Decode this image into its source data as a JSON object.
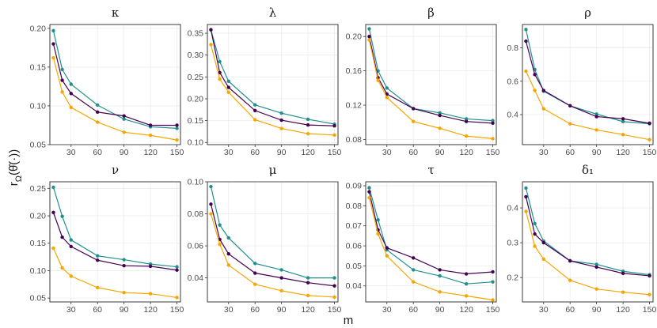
{
  "figure": {
    "xlabel": "m",
    "ylabel": "rΩ(θ̂(·))",
    "colors": {
      "teal": "#21908d",
      "purple": "#440154",
      "orange": "#f7a600"
    }
  },
  "chart_data": [
    {
      "type": "line",
      "title": "κ",
      "x": [
        10,
        20,
        30,
        60,
        90,
        120,
        150
      ],
      "xticks": [
        30,
        60,
        90,
        120,
        150
      ],
      "xlim": [
        6,
        154
      ],
      "ylim": [
        0.05,
        0.205
      ],
      "yticks": [
        0.05,
        0.1,
        0.15,
        0.2
      ],
      "ytick_labels": [
        "0.05",
        "0.10",
        "0.15",
        "0.20"
      ],
      "series": [
        {
          "name": "teal",
          "color": "#21908d",
          "values": [
            0.197,
            0.147,
            0.128,
            0.101,
            0.083,
            0.073,
            0.071
          ]
        },
        {
          "name": "purple",
          "color": "#440154",
          "values": [
            0.18,
            0.133,
            0.116,
            0.092,
            0.087,
            0.075,
            0.075
          ]
        },
        {
          "name": "orange",
          "color": "#f7a600",
          "values": [
            0.162,
            0.118,
            0.098,
            0.079,
            0.066,
            0.062,
            0.056
          ]
        }
      ]
    },
    {
      "type": "line",
      "title": "λ",
      "x": [
        10,
        20,
        30,
        60,
        90,
        120,
        150
      ],
      "xticks": [
        30,
        60,
        90,
        120,
        150
      ],
      "xlim": [
        6,
        154
      ],
      "ylim": [
        0.095,
        0.37
      ],
      "yticks": [
        0.1,
        0.15,
        0.2,
        0.25,
        0.3,
        0.35
      ],
      "ytick_labels": [
        "0.10",
        "0.15",
        "0.20",
        "0.25",
        "0.30",
        "0.35"
      ],
      "series": [
        {
          "name": "teal",
          "color": "#21908d",
          "values": [
            0.358,
            0.285,
            0.24,
            0.186,
            0.167,
            0.153,
            0.142
          ]
        },
        {
          "name": "purple",
          "color": "#440154",
          "values": [
            0.358,
            0.26,
            0.226,
            0.173,
            0.151,
            0.14,
            0.138
          ]
        },
        {
          "name": "orange",
          "color": "#f7a600",
          "values": [
            0.324,
            0.245,
            0.215,
            0.152,
            0.132,
            0.12,
            0.117
          ]
        }
      ]
    },
    {
      "type": "line",
      "title": "β",
      "x": [
        10,
        20,
        30,
        60,
        90,
        120,
        150
      ],
      "xticks": [
        30,
        60,
        90,
        120,
        150
      ],
      "xlim": [
        6,
        154
      ],
      "ylim": [
        0.074,
        0.214
      ],
      "yticks": [
        0.08,
        0.12,
        0.16,
        0.2
      ],
      "ytick_labels": [
        "0.08",
        "0.12",
        "0.16",
        "0.20"
      ],
      "series": [
        {
          "name": "teal",
          "color": "#21908d",
          "values": [
            0.209,
            0.16,
            0.14,
            0.116,
            0.111,
            0.104,
            0.102
          ]
        },
        {
          "name": "purple",
          "color": "#440154",
          "values": [
            0.2,
            0.152,
            0.133,
            0.116,
            0.108,
            0.101,
            0.099
          ]
        },
        {
          "name": "orange",
          "color": "#f7a600",
          "values": [
            0.196,
            0.149,
            0.129,
            0.101,
            0.093,
            0.084,
            0.081
          ]
        }
      ]
    },
    {
      "type": "line",
      "title": "ρ",
      "x": [
        10,
        20,
        30,
        60,
        90,
        120,
        150
      ],
      "xticks": [
        30,
        60,
        90,
        120,
        150
      ],
      "xlim": [
        6,
        154
      ],
      "ylim": [
        0.22,
        0.94
      ],
      "yticks": [
        0.4,
        0.6,
        0.8
      ],
      "ytick_labels": [
        "0.4",
        "0.6",
        "0.8"
      ],
      "series": [
        {
          "name": "teal",
          "color": "#21908d",
          "values": [
            0.91,
            0.67,
            0.54,
            0.453,
            0.403,
            0.358,
            0.345
          ]
        },
        {
          "name": "purple",
          "color": "#440154",
          "values": [
            0.84,
            0.64,
            0.545,
            0.453,
            0.388,
            0.375,
            0.348
          ]
        },
        {
          "name": "orange",
          "color": "#f7a600",
          "values": [
            0.66,
            0.545,
            0.435,
            0.345,
            0.308,
            0.28,
            0.25
          ]
        }
      ]
    },
    {
      "type": "line",
      "title": "ν",
      "x": [
        10,
        20,
        30,
        60,
        90,
        120,
        150
      ],
      "xticks": [
        30,
        60,
        90,
        120,
        150
      ],
      "xlim": [
        6,
        154
      ],
      "ylim": [
        0.043,
        0.262
      ],
      "yticks": [
        0.05,
        0.1,
        0.15,
        0.2,
        0.25
      ],
      "ytick_labels": [
        "0.05",
        "0.10",
        "0.15",
        "0.20",
        "0.25"
      ],
      "series": [
        {
          "name": "teal",
          "color": "#21908d",
          "values": [
            0.252,
            0.199,
            0.156,
            0.127,
            0.12,
            0.112,
            0.107
          ]
        },
        {
          "name": "purple",
          "color": "#440154",
          "values": [
            0.206,
            0.161,
            0.144,
            0.119,
            0.109,
            0.108,
            0.101
          ]
        },
        {
          "name": "orange",
          "color": "#f7a600",
          "values": [
            0.141,
            0.105,
            0.09,
            0.069,
            0.06,
            0.058,
            0.051
          ]
        }
      ]
    },
    {
      "type": "line",
      "title": "μ",
      "x": [
        10,
        20,
        30,
        60,
        90,
        120,
        150
      ],
      "xticks": [
        30,
        60,
        90,
        120,
        150
      ],
      "xlim": [
        6,
        154
      ],
      "ylim": [
        0.025,
        0.1
      ],
      "yticks": [
        0.04,
        0.06,
        0.08,
        0.1
      ],
      "ytick_labels": [
        "0.04",
        "0.06",
        "0.08",
        "0.10"
      ],
      "series": [
        {
          "name": "teal",
          "color": "#21908d",
          "values": [
            0.097,
            0.073,
            0.065,
            0.049,
            0.045,
            0.04,
            0.04
          ]
        },
        {
          "name": "purple",
          "color": "#440154",
          "values": [
            0.086,
            0.064,
            0.055,
            0.043,
            0.04,
            0.037,
            0.035
          ]
        },
        {
          "name": "orange",
          "color": "#f7a600",
          "values": [
            0.08,
            0.061,
            0.048,
            0.036,
            0.032,
            0.029,
            0.028
          ]
        }
      ]
    },
    {
      "type": "line",
      "title": "τ",
      "x": [
        10,
        20,
        30,
        60,
        90,
        120,
        150
      ],
      "xticks": [
        30,
        60,
        90,
        120,
        150
      ],
      "xlim": [
        6,
        154
      ],
      "ylim": [
        0.032,
        0.092
      ],
      "yticks": [
        0.04,
        0.05,
        0.06,
        0.07,
        0.08,
        0.09
      ],
      "ytick_labels": [
        "0.04",
        "0.05",
        "0.06",
        "0.07",
        "0.08",
        "0.09"
      ],
      "series": [
        {
          "name": "teal",
          "color": "#21908d",
          "values": [
            0.089,
            0.073,
            0.058,
            0.048,
            0.045,
            0.041,
            0.042
          ]
        },
        {
          "name": "purple",
          "color": "#440154",
          "values": [
            0.087,
            0.068,
            0.059,
            0.054,
            0.048,
            0.046,
            0.047
          ]
        },
        {
          "name": "orange",
          "color": "#f7a600",
          "values": [
            0.084,
            0.066,
            0.055,
            0.042,
            0.037,
            0.035,
            0.033
          ]
        }
      ]
    },
    {
      "type": "line",
      "title": "δ₁",
      "x": [
        10,
        20,
        30,
        60,
        90,
        120,
        150
      ],
      "xticks": [
        30,
        60,
        90,
        120,
        150
      ],
      "xlim": [
        6,
        154
      ],
      "ylim": [
        0.13,
        0.475
      ],
      "yticks": [
        0.2,
        0.3,
        0.4
      ],
      "ytick_labels": [
        "0.2",
        "0.3",
        "0.4"
      ],
      "series": [
        {
          "name": "teal",
          "color": "#21908d",
          "values": [
            0.457,
            0.355,
            0.305,
            0.248,
            0.238,
            0.218,
            0.208
          ]
        },
        {
          "name": "purple",
          "color": "#440154",
          "values": [
            0.432,
            0.325,
            0.3,
            0.248,
            0.23,
            0.212,
            0.205
          ]
        },
        {
          "name": "orange",
          "color": "#f7a600",
          "values": [
            0.39,
            0.29,
            0.253,
            0.192,
            0.167,
            0.158,
            0.151
          ]
        }
      ]
    }
  ]
}
